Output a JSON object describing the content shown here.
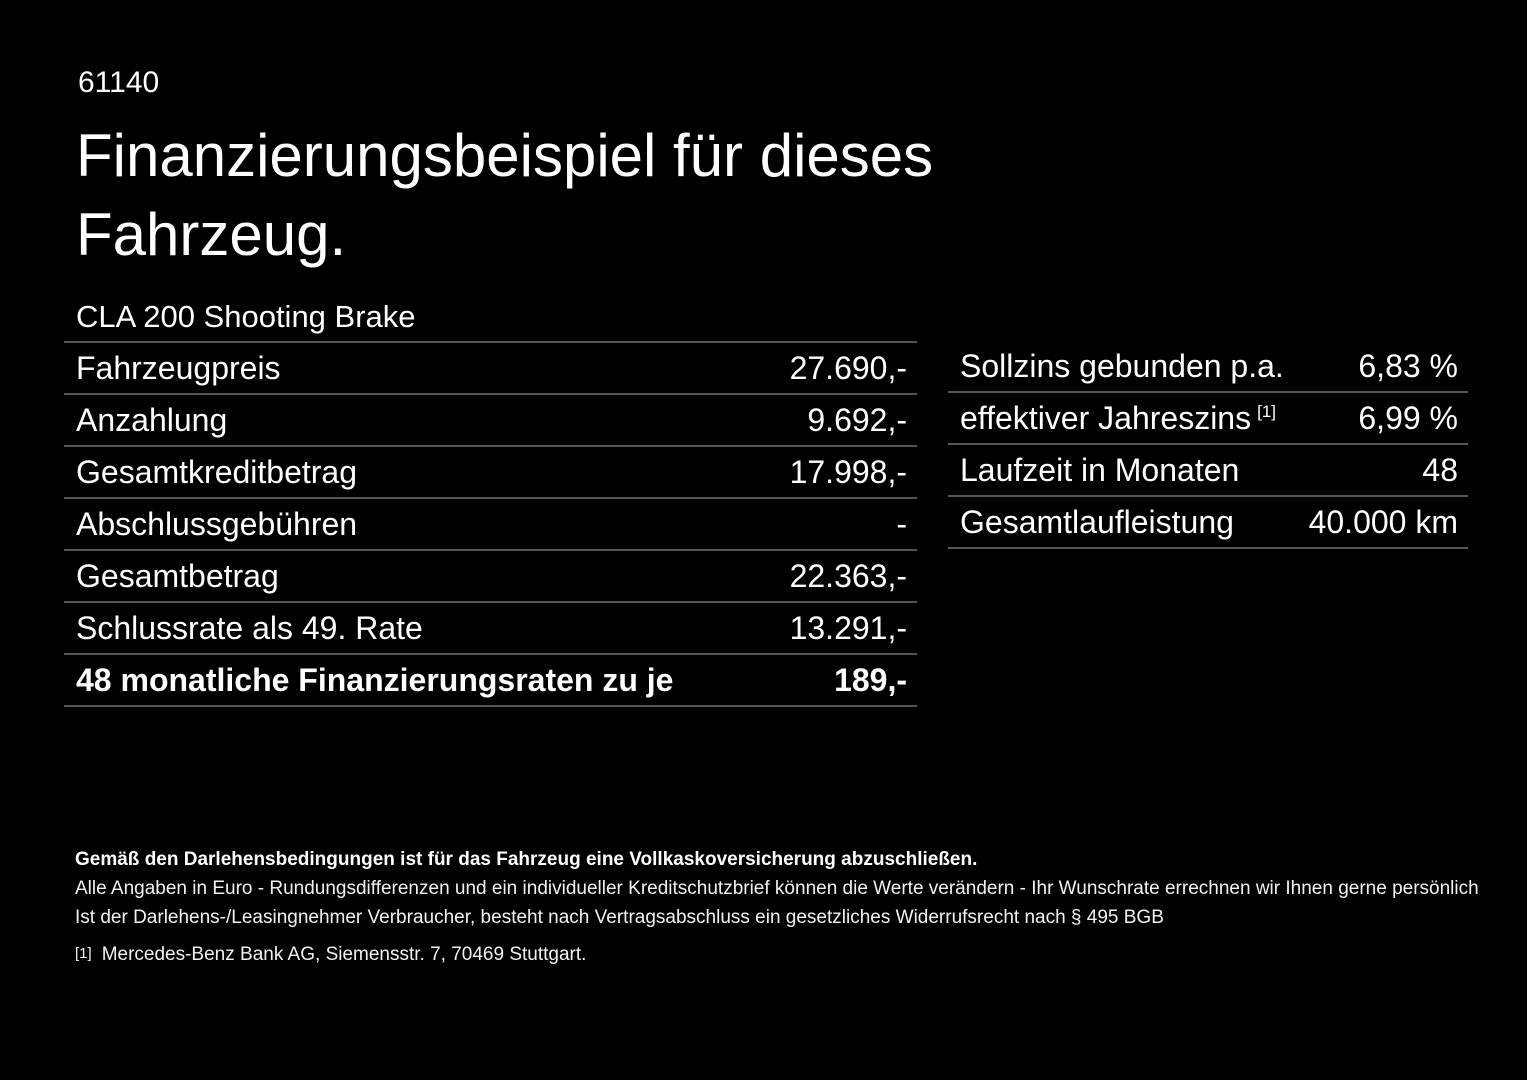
{
  "page": {
    "code": "61140",
    "title_line1": "Finanzierungsbeispiel für dieses",
    "title_line2": "Fahrzeug.",
    "model": "CLA 200 Shooting Brake"
  },
  "left_table": {
    "rows": [
      {
        "label": "Fahrzeugpreis",
        "value": "27.690,-"
      },
      {
        "label": "Anzahlung",
        "value": "9.692,-"
      },
      {
        "label": "Gesamtkreditbetrag",
        "value": "17.998,-"
      },
      {
        "label": "Abschlussgebühren",
        "value": "-"
      },
      {
        "label": "Gesamtbetrag",
        "value": "22.363,-"
      },
      {
        "label": "Schlussrate als 49. Rate",
        "value": "13.291,-"
      },
      {
        "label": "48 monatliche Finanzierungsraten zu je",
        "value": "189,-"
      }
    ]
  },
  "right_table": {
    "rows": [
      {
        "label": "Sollzins gebunden p.a.",
        "value": "6,83 %"
      },
      {
        "label": "effektiver Jahreszins",
        "footnote_marker": "[1]",
        "value": "6,99 %"
      },
      {
        "label": "Laufzeit in Monaten",
        "value": "48"
      },
      {
        "label": "Gesamtlaufleistung",
        "value": "40.000 km"
      }
    ]
  },
  "footer": {
    "line1": "Gemäß den Darlehensbedingungen ist für das Fahrzeug eine Vollkaskoversicherung abzuschließen.",
    "line2": "Alle Angaben in Euro - Rundungsdifferenzen und ein individueller Kreditschutzbrief können die Werte verändern - Ihr Wunschrate errechnen wir Ihnen gerne persönlich",
    "line3": "Ist der Darlehens-/Leasingnehmer Verbraucher, besteht nach Vertragsabschluss ein gesetzliches Widerrufsrecht nach § 495 BGB",
    "footnote_marker": "[1]",
    "footnote_text": "Mercedes-Benz Bank AG, Siemensstr. 7, 70469 Stuttgart."
  },
  "colors": {
    "background": "#000000",
    "text": "#ffffff",
    "divider": "#565656"
  }
}
